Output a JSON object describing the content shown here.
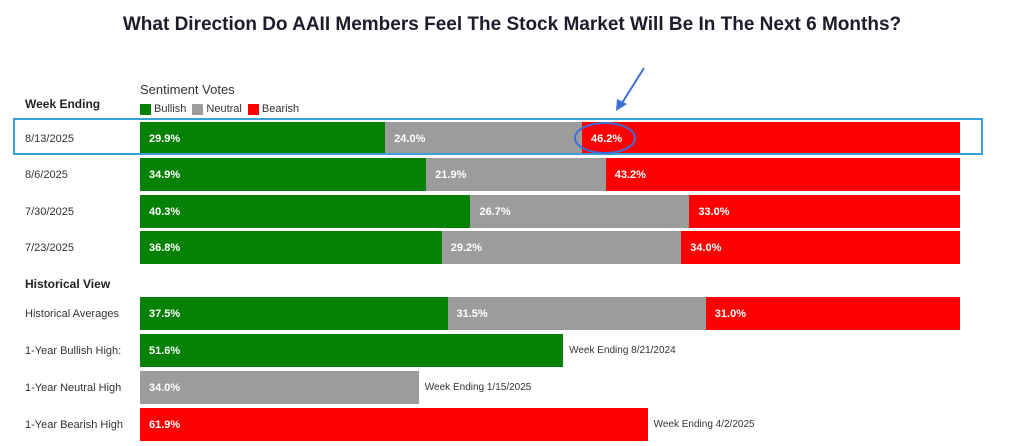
{
  "title": "What Direction Do AAII Members Feel The Stock Market Will Be In The Next 6 Months?",
  "sentiment_votes_label": "Sentiment Votes",
  "week_ending_label": "Week Ending",
  "historical_view_label": "Historical View",
  "legend": [
    {
      "label": "Bullish",
      "color": "#058205"
    },
    {
      "label": "Neutral",
      "color": "#9c9c9c"
    },
    {
      "label": "Bearish",
      "color": "#ff0000"
    }
  ],
  "chart_data": {
    "type": "bar",
    "stacked": true,
    "orientation": "horizontal",
    "scale_max": 100,
    "weekly": [
      {
        "label": "8/13/2025",
        "bullish": 29.9,
        "neutral": 24.0,
        "bearish": 46.2,
        "bullish_text": "29.9%",
        "neutral_text": "24.0%",
        "bearish_text": "46.2%",
        "highlighted": true
      },
      {
        "label": "8/6/2025",
        "bullish": 34.9,
        "neutral": 21.9,
        "bearish": 43.2,
        "bullish_text": "34.9%",
        "neutral_text": "21.9%",
        "bearish_text": "43.2%"
      },
      {
        "label": "7/30/2025",
        "bullish": 40.3,
        "neutral": 26.7,
        "bearish": 33.0,
        "bullish_text": "40.3%",
        "neutral_text": "26.7%",
        "bearish_text": "33.0%"
      },
      {
        "label": "7/23/2025",
        "bullish": 36.8,
        "neutral": 29.2,
        "bearish": 34.0,
        "bullish_text": "36.8%",
        "neutral_text": "29.2%",
        "bearish_text": "34.0%"
      }
    ],
    "historical": [
      {
        "label": "Historical Averages",
        "bullish": 37.5,
        "neutral": 31.5,
        "bearish": 31.0,
        "bullish_text": "37.5%",
        "neutral_text": "31.5%",
        "bearish_text": "31.0%"
      },
      {
        "label": "1-Year Bullish High:",
        "bullish": 51.6,
        "bullish_text": "51.6%",
        "note": "Week Ending 8/21/2024"
      },
      {
        "label": "1-Year Neutral High",
        "neutral": 34.0,
        "neutral_text": "34.0%",
        "note": "Week Ending 1/15/2025"
      },
      {
        "label": "1-Year Bearish High",
        "bearish": 61.9,
        "bearish_text": "61.9%",
        "note": "Week Ending 4/2/2025"
      }
    ]
  },
  "annotation": {
    "arrow_color": "#3d6fd6",
    "box_color": "#3aa0d8"
  }
}
